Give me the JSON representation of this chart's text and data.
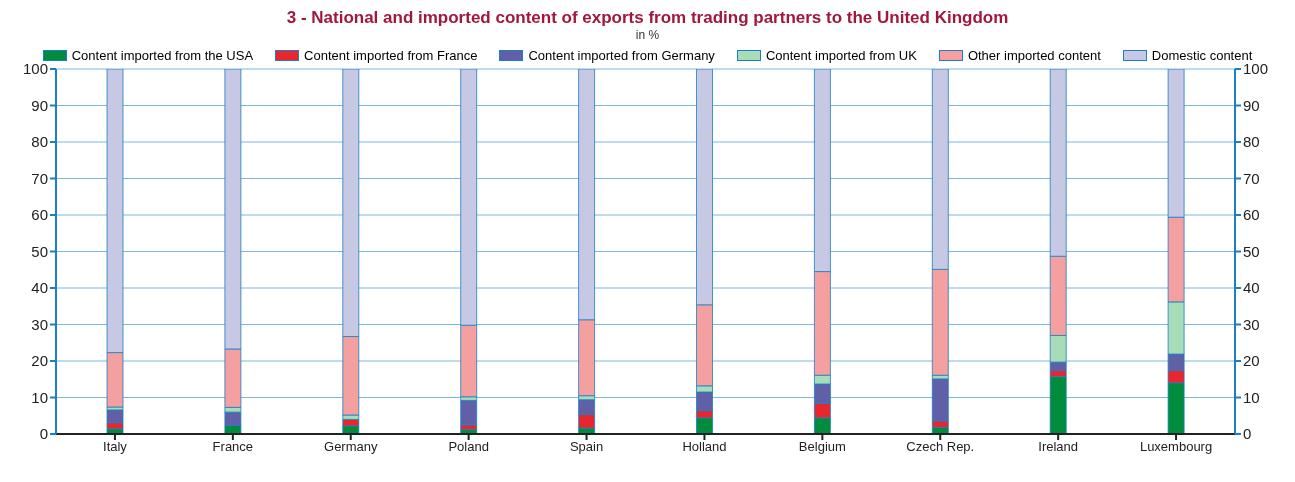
{
  "chart_data": {
    "type": "bar",
    "title": "3 - National and imported content of exports from trading partners to the United Kingdom",
    "subtitle": "in %",
    "stacked": true,
    "categories": [
      "Italy",
      "France",
      "Germany",
      "Poland",
      "Spain",
      "Holland",
      "Belgium",
      "Czech Rep.",
      "Ireland",
      "Luxembourg"
    ],
    "series": [
      {
        "name": "Content imported from the USA",
        "color": "#008c3c",
        "values": [
          1.4,
          2.3,
          2.2,
          1.2,
          1.6,
          4.4,
          4.4,
          1.8,
          15.7,
          14.0
        ]
      },
      {
        "name": "Content imported from France",
        "color": "#e8262e",
        "values": [
          1.7,
          0,
          1.8,
          1.3,
          3.8,
          2.0,
          4.0,
          1.8,
          1.7,
          3.4
        ]
      },
      {
        "name": "Content imported from Germany",
        "color": "#6060a8",
        "values": [
          3.5,
          3.7,
          0,
          6.7,
          4.0,
          5.1,
          5.3,
          11.5,
          2.3,
          4.5
        ]
      },
      {
        "name": "Content imported from UK",
        "color": "#a8dcb8",
        "values": [
          0.8,
          1.3,
          1.2,
          1.0,
          1.1,
          1.7,
          2.4,
          1.0,
          7.3,
          14.3
        ]
      },
      {
        "name": "Other imported content",
        "color": "#f4a0a0",
        "values": [
          14.9,
          16.0,
          21.5,
          19.6,
          20.8,
          22.2,
          28.4,
          29.0,
          21.7,
          23.2
        ]
      },
      {
        "name": "Domestic content",
        "color": "#c7c8e3",
        "values": [
          77.7,
          76.7,
          73.3,
          70.2,
          68.7,
          64.6,
          55.5,
          54.9,
          51.3,
          40.6
        ]
      }
    ],
    "ylim": [
      0,
      100
    ],
    "yticks": [
      0,
      10,
      20,
      30,
      40,
      50,
      60,
      70,
      80,
      90,
      100
    ],
    "y2lim": [
      0,
      100
    ],
    "y2ticks": [
      0,
      10,
      20,
      30,
      40,
      50,
      60,
      70,
      80,
      90,
      100
    ],
    "grid": true,
    "legend": "top"
  }
}
